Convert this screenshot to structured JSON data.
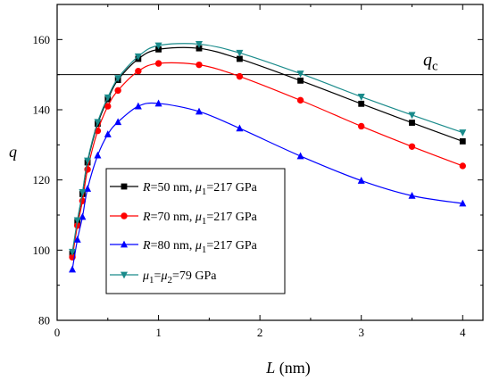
{
  "chart_data": {
    "type": "line",
    "title": "",
    "xlabel": {
      "main": "L",
      "unit": " (nm)"
    },
    "ylabel": "q",
    "xlim": [
      0,
      4.2
    ],
    "ylim": [
      80,
      170
    ],
    "xticks": [
      "0",
      "1",
      "2",
      "3",
      "4"
    ],
    "yticks": [
      "80",
      "100",
      "120",
      "140",
      "160"
    ],
    "grid": false,
    "legend_position": "lower-left",
    "reference_line": {
      "y": 150,
      "label_main": "q",
      "label_sub": "c"
    },
    "series": [
      {
        "legend": [
          {
            "t": "R",
            "italic": true
          },
          {
            "t": "=50 nm, "
          },
          {
            "t": "μ",
            "italic": true
          },
          {
            "t": "1",
            "sub": true
          },
          {
            "t": "=217 GPa"
          }
        ],
        "color": "#000000",
        "marker": "square",
        "x": [
          0.15,
          0.2,
          0.25,
          0.3,
          0.4,
          0.5,
          0.6,
          0.8,
          1.0,
          1.4,
          1.8,
          2.4,
          3.0,
          3.5,
          4.0
        ],
        "y": [
          99,
          108,
          116,
          125,
          136,
          143,
          148.5,
          154.5,
          157.2,
          157.5,
          154.5,
          148.3,
          141.7,
          136.3,
          131
        ]
      },
      {
        "legend": [
          {
            "t": "R",
            "italic": true
          },
          {
            "t": "=70 nm, "
          },
          {
            "t": "μ",
            "italic": true
          },
          {
            "t": "1",
            "sub": true
          },
          {
            "t": "=217 GPa"
          }
        ],
        "color": "#ff0000",
        "marker": "circle",
        "x": [
          0.15,
          0.2,
          0.25,
          0.3,
          0.4,
          0.5,
          0.6,
          0.8,
          1.0,
          1.4,
          1.8,
          2.4,
          3.0,
          3.5,
          4.0
        ],
        "y": [
          98,
          107,
          114,
          123,
          134,
          141,
          145.5,
          151,
          153.2,
          152.8,
          149.5,
          142.7,
          135.3,
          129.5,
          124
        ]
      },
      {
        "legend": [
          {
            "t": "R",
            "italic": true
          },
          {
            "t": "=80 nm, "
          },
          {
            "t": "μ",
            "italic": true
          },
          {
            "t": "1",
            "sub": true
          },
          {
            "t": "=217 GPa"
          }
        ],
        "color": "#0000ff",
        "marker": "triangle-up",
        "x": [
          0.15,
          0.2,
          0.25,
          0.3,
          0.4,
          0.5,
          0.6,
          0.8,
          1.0,
          1.4,
          1.8,
          2.4,
          3.0,
          3.5,
          4.0
        ],
        "y": [
          94.5,
          103,
          109.5,
          117.5,
          127,
          133,
          136.5,
          141,
          141.8,
          139.5,
          134.7,
          126.8,
          119.8,
          115.5,
          113.3
        ]
      },
      {
        "legend": [
          {
            "t": "μ",
            "italic": true
          },
          {
            "t": "1",
            "sub": true
          },
          {
            "t": "="
          },
          {
            "t": "μ",
            "italic": true
          },
          {
            "t": "2",
            "sub": true
          },
          {
            "t": "=79 GPa"
          }
        ],
        "color": "#1a8b8b",
        "marker": "triangle-down",
        "x": [
          0.15,
          0.2,
          0.25,
          0.3,
          0.4,
          0.5,
          0.6,
          0.8,
          1.0,
          1.4,
          1.8,
          2.4,
          3.0,
          3.5,
          4.0
        ],
        "y": [
          99.5,
          108.5,
          116.5,
          125.5,
          136.5,
          143.5,
          149,
          155.2,
          158.3,
          158.7,
          156.2,
          150.3,
          143.7,
          138.5,
          133.5
        ]
      }
    ]
  }
}
